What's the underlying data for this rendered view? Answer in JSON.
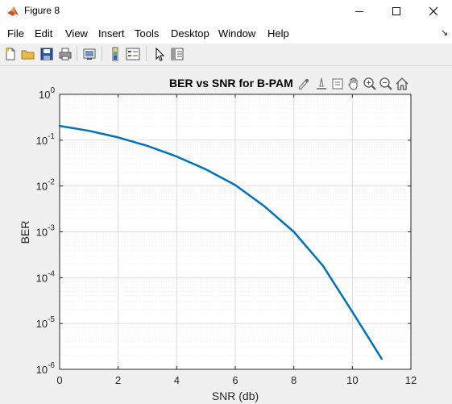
{
  "window": {
    "title": "Figure 8",
    "controls": [
      "minimize",
      "maximize",
      "close"
    ]
  },
  "menu": {
    "items": [
      "File",
      "Edit",
      "View",
      "Insert",
      "Tools",
      "Desktop",
      "Window",
      "Help"
    ]
  },
  "toolbar": {
    "buttons": [
      "new-figure-icon",
      "open-file-icon",
      "save-icon",
      "print-icon",
      "link-plot-icon",
      "colorbar-icon",
      "legend-icon",
      "edit-plot-icon",
      "property-inspector-icon"
    ]
  },
  "axes_toolbar": {
    "buttons": [
      "brush-icon",
      "data-tips-icon",
      "export-icon",
      "pan-icon",
      "zoom-in-icon",
      "zoom-out-icon",
      "home-icon"
    ]
  },
  "colors": {
    "line": "#0072bd",
    "grid": "#dcdcdc"
  },
  "chart_data": {
    "type": "line",
    "title": "BER vs SNR for B-PAM",
    "xlabel": "SNR (db)",
    "ylabel": "BER",
    "yscale": "log",
    "xlim": [
      0,
      12
    ],
    "ylim": [
      1e-06,
      1
    ],
    "xticks": [
      0,
      2,
      4,
      6,
      8,
      10,
      12
    ],
    "yticks": [
      {
        "value": 1,
        "base": "10",
        "exp": "0"
      },
      {
        "value": 0.1,
        "base": "10",
        "exp": "-1"
      },
      {
        "value": 0.01,
        "base": "10",
        "exp": "-2"
      },
      {
        "value": 0.001,
        "base": "10",
        "exp": "-3"
      },
      {
        "value": 0.0001,
        "base": "10",
        "exp": "-4"
      },
      {
        "value": 1e-05,
        "base": "10",
        "exp": "-5"
      },
      {
        "value": 1e-06,
        "base": "10",
        "exp": "-6"
      }
    ],
    "grid": true,
    "minor_grid": true,
    "series": [
      {
        "name": "BER",
        "x": [
          0,
          1,
          2,
          3,
          4,
          5,
          6,
          7,
          8,
          9,
          10,
          11
        ],
        "y": [
          0.205,
          0.16,
          0.115,
          0.075,
          0.044,
          0.023,
          0.0105,
          0.0036,
          0.001,
          0.00018,
          1.8e-05,
          1.7e-06
        ]
      }
    ]
  }
}
